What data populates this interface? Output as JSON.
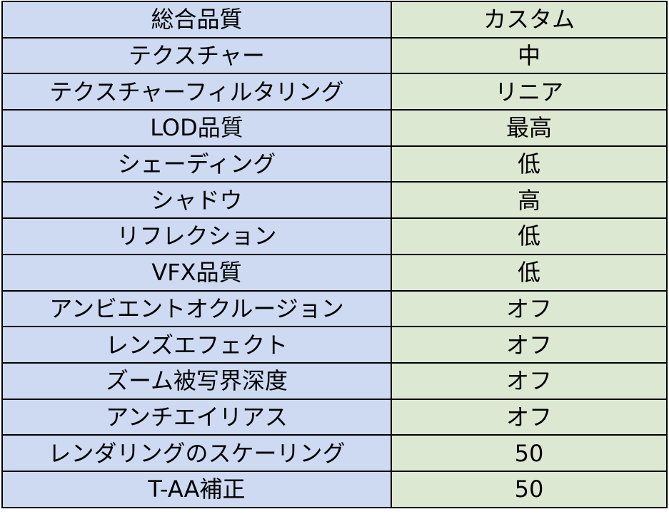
{
  "colors": {
    "label_bg": "#cddaf2",
    "value_bg": "#dde8d2",
    "border": "#000000"
  },
  "settings": [
    {
      "label": "総合品質",
      "value": "カスタム"
    },
    {
      "label": "テクスチャー",
      "value": "中"
    },
    {
      "label": "テクスチャーフィルタリング",
      "value": "リニア"
    },
    {
      "label": "LOD品質",
      "value": "最高"
    },
    {
      "label": "シェーディング",
      "value": "低"
    },
    {
      "label": "シャドウ",
      "value": "高"
    },
    {
      "label": "リフレクション",
      "value": "低"
    },
    {
      "label": "VFX品質",
      "value": "低"
    },
    {
      "label": "アンビエントオクルージョン",
      "value": "オフ"
    },
    {
      "label": "レンズエフェクト",
      "value": "オフ"
    },
    {
      "label": "ズーム被写界深度",
      "value": "オフ"
    },
    {
      "label": "アンチエイリアス",
      "value": "オフ"
    },
    {
      "label": "レンダリングのスケーリング",
      "value": "50"
    },
    {
      "label": "T-AA補正",
      "value": "50"
    }
  ]
}
